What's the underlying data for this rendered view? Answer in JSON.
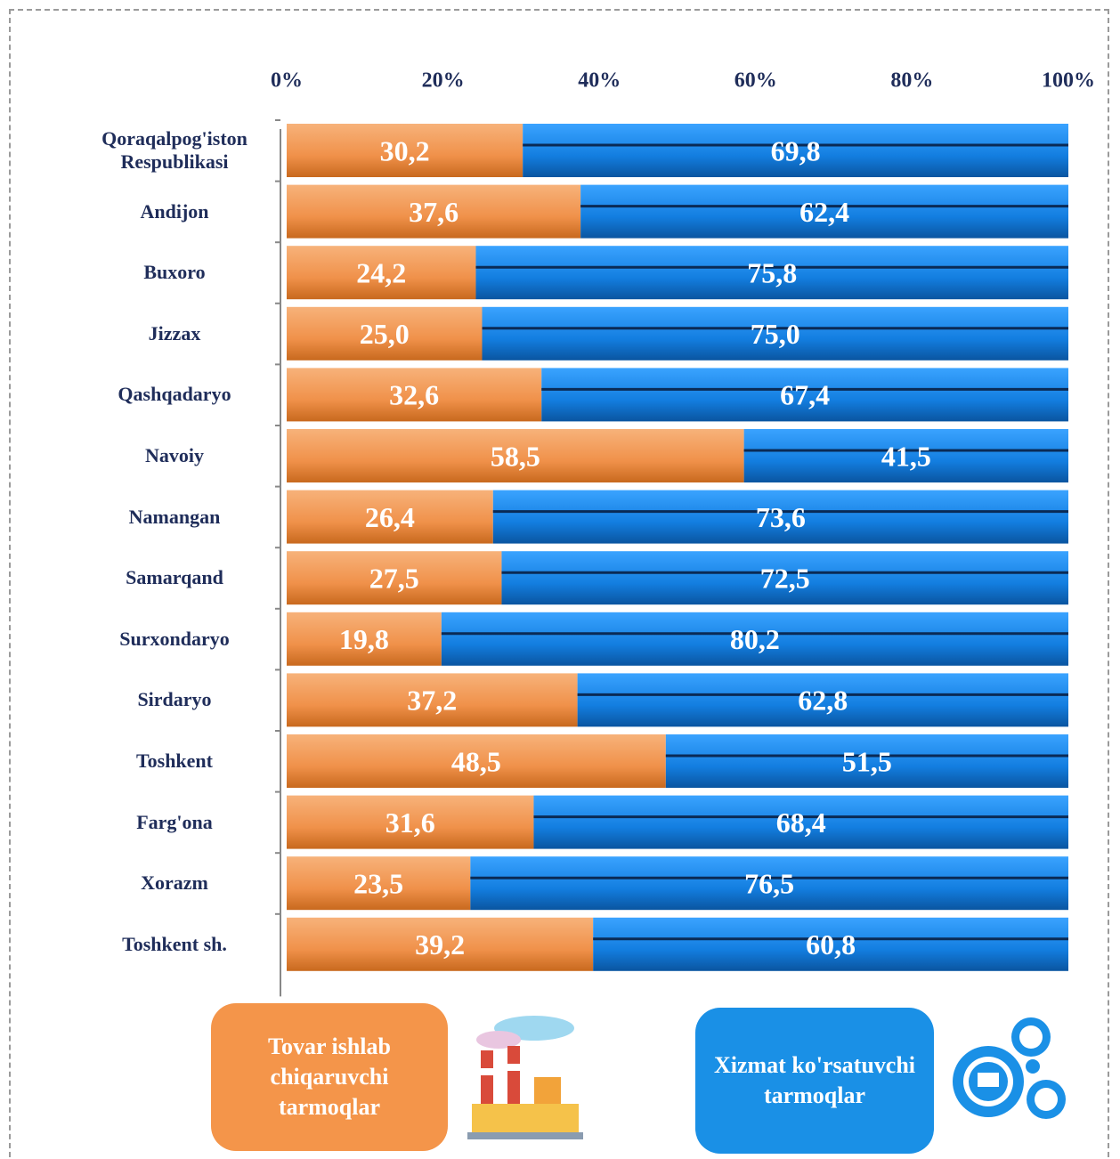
{
  "chart_data": {
    "type": "stacked-bar-horizontal",
    "categories": [
      "Qoraqalpog'iston Respublikasi",
      "Andijon",
      "Buxoro",
      "Jizzax",
      "Qashqadaryo",
      "Navoiy",
      "Namangan",
      "Samarqand",
      "Surxondaryo",
      "Sirdaryo",
      "Toshkent",
      "Farg'ona",
      "Xorazm",
      "Toshkent sh."
    ],
    "series": [
      {
        "name": "Tovar ishlab chiqaruvchi tarmoqlar",
        "color": "#f0914a",
        "values": [
          30.2,
          37.6,
          24.2,
          25.0,
          32.6,
          58.5,
          26.4,
          27.5,
          19.8,
          37.2,
          48.5,
          31.6,
          23.5,
          39.2
        ],
        "value_labels": [
          "30,2",
          "37,6",
          "24,2",
          "25,0",
          "32,6",
          "58,5",
          "26,4",
          "27,5",
          "19,8",
          "37,2",
          "48,5",
          "31,6",
          "23,5",
          "39,2"
        ]
      },
      {
        "name": "Xizmat ko'rsatuvchi tarmoqlar",
        "color": "#137ee0",
        "values": [
          69.8,
          62.4,
          75.8,
          75.0,
          67.4,
          41.5,
          73.6,
          72.5,
          80.2,
          62.8,
          51.5,
          68.4,
          76.5,
          60.8
        ],
        "value_labels": [
          "69,8",
          "62,4",
          "75,8",
          "75,0",
          "67,4",
          "41,5",
          "73,6",
          "72,5",
          "80,2",
          "62,8",
          "51,5",
          "68,4",
          "76,5",
          "60,8"
        ]
      }
    ],
    "xlim": [
      0,
      100
    ],
    "xticks": [
      {
        "value": 0,
        "label": "0%"
      },
      {
        "value": 20,
        "label": "20%"
      },
      {
        "value": 40,
        "label": "40%"
      },
      {
        "value": 60,
        "label": "60%"
      },
      {
        "value": 80,
        "label": "80%"
      },
      {
        "value": 100,
        "label": "100%"
      }
    ]
  }
}
